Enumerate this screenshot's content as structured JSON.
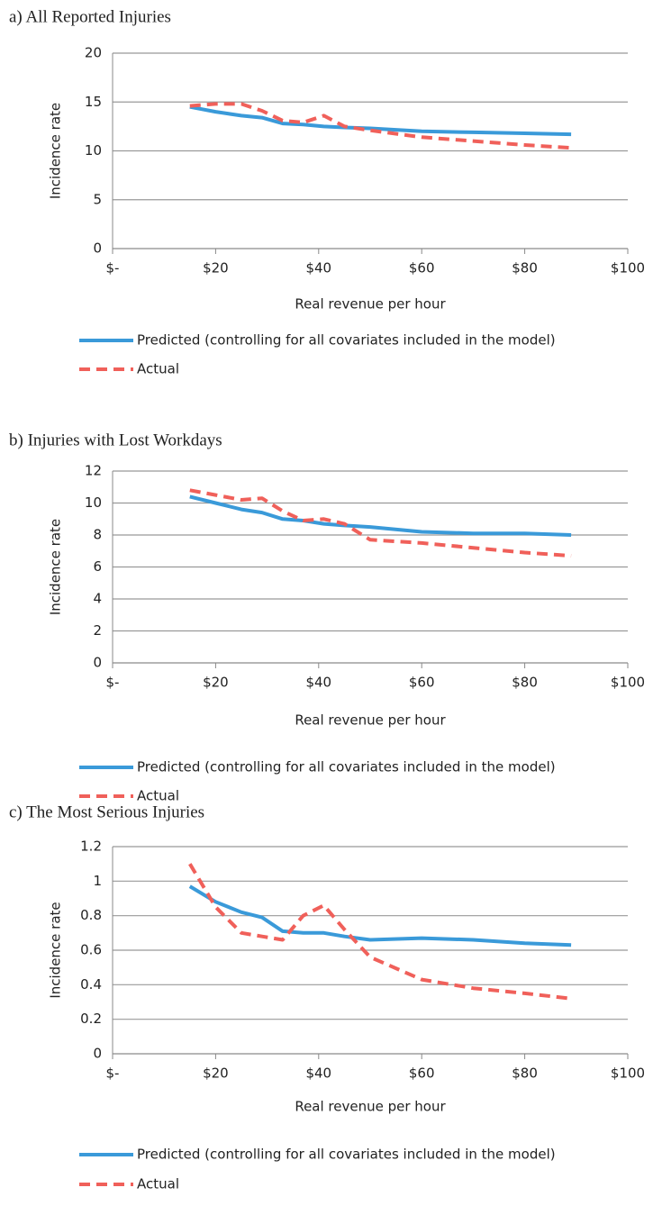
{
  "chart_data": [
    {
      "type": "line",
      "title": "a) All Reported Injuries",
      "x_label": "Real revenue per hour",
      "y_label": "Incidence rate",
      "x": [
        15,
        20,
        25,
        29,
        33,
        37,
        41,
        45,
        50,
        60,
        70,
        80,
        89
      ],
      "series": [
        {
          "name": "Predicted (controlling for all covariates included in the model)",
          "color": "#3a9ad9",
          "line_style": "solid",
          "values": [
            14.5,
            14.0,
            13.6,
            13.4,
            12.8,
            12.7,
            12.5,
            12.4,
            12.3,
            12.0,
            11.9,
            11.8,
            11.7
          ]
        },
        {
          "name": "Actual",
          "color": "#f0605a",
          "line_style": "dashed",
          "values": [
            14.6,
            14.8,
            14.8,
            14.1,
            13.1,
            12.9,
            13.6,
            12.5,
            12.1,
            11.4,
            11.0,
            10.6,
            10.3
          ]
        }
      ],
      "xlim": [
        0,
        100
      ],
      "xticks": [
        {
          "value": 0,
          "label": "$-"
        },
        {
          "value": 20,
          "label": "$20"
        },
        {
          "value": 40,
          "label": "$40"
        },
        {
          "value": 60,
          "label": "$60"
        },
        {
          "value": 80,
          "label": "$80"
        },
        {
          "value": 100,
          "label": "$100"
        }
      ],
      "ylim": [
        0,
        20
      ],
      "yticks": [
        0,
        5,
        10,
        15,
        20
      ],
      "grid": true
    },
    {
      "type": "line",
      "title": "b) Injuries with Lost Workdays",
      "x_label": "Real revenue per hour",
      "y_label": "Incidence rate",
      "x": [
        15,
        20,
        25,
        29,
        33,
        37,
        41,
        45,
        50,
        60,
        70,
        80,
        89
      ],
      "series": [
        {
          "name": "Predicted (controlling for all covariates included in the model)",
          "color": "#3a9ad9",
          "line_style": "solid",
          "values": [
            10.4,
            10.0,
            9.6,
            9.4,
            9.0,
            8.9,
            8.7,
            8.6,
            8.5,
            8.2,
            8.1,
            8.1,
            8.0
          ]
        },
        {
          "name": "Actual",
          "color": "#f0605a",
          "line_style": "dashed",
          "values": [
            10.8,
            10.5,
            10.2,
            10.3,
            9.5,
            8.9,
            9.0,
            8.7,
            7.7,
            7.5,
            7.2,
            6.9,
            6.7
          ]
        }
      ],
      "xlim": [
        0,
        100
      ],
      "xticks": [
        {
          "value": 0,
          "label": "$-"
        },
        {
          "value": 20,
          "label": "$20"
        },
        {
          "value": 40,
          "label": "$40"
        },
        {
          "value": 60,
          "label": "$60"
        },
        {
          "value": 80,
          "label": "$80"
        },
        {
          "value": 100,
          "label": "$100"
        }
      ],
      "ylim": [
        0,
        12
      ],
      "yticks": [
        0,
        2,
        4,
        6,
        8,
        10,
        12
      ],
      "grid": true
    },
    {
      "type": "line",
      "title": "c) The Most Serious Injuries",
      "x_label": "Real revenue per hour",
      "y_label": "Incidence rate",
      "x": [
        15,
        20,
        25,
        29,
        33,
        37,
        41,
        45,
        50,
        60,
        70,
        80,
        89
      ],
      "series": [
        {
          "name": "Predicted (controlling for all covariates included in the model)",
          "color": "#3a9ad9",
          "line_style": "solid",
          "values": [
            0.97,
            0.88,
            0.82,
            0.79,
            0.71,
            0.7,
            0.7,
            0.68,
            0.66,
            0.67,
            0.66,
            0.64,
            0.63
          ]
        },
        {
          "name": "Actual",
          "color": "#f0605a",
          "line_style": "dashed",
          "values": [
            1.1,
            0.85,
            0.7,
            0.68,
            0.66,
            0.8,
            0.86,
            0.72,
            0.56,
            0.43,
            0.38,
            0.35,
            0.32
          ]
        }
      ],
      "xlim": [
        0,
        100
      ],
      "xticks": [
        {
          "value": 0,
          "label": "$-"
        },
        {
          "value": 20,
          "label": "$20"
        },
        {
          "value": 40,
          "label": "$40"
        },
        {
          "value": 60,
          "label": "$60"
        },
        {
          "value": 80,
          "label": "$80"
        },
        {
          "value": 100,
          "label": "$100"
        }
      ],
      "ylim": [
        0,
        1.2
      ],
      "yticks": [
        0,
        0.2,
        0.4,
        0.6,
        0.8,
        1,
        1.2
      ],
      "grid": true
    }
  ]
}
